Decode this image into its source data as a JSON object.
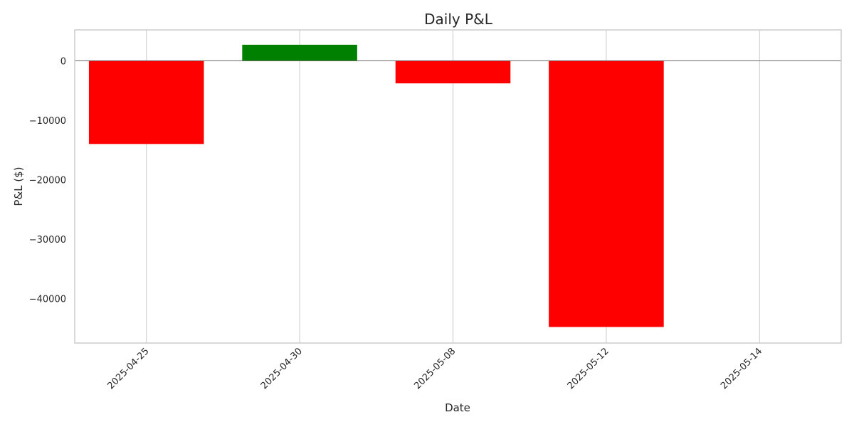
{
  "chart_data": {
    "type": "bar",
    "title": "Daily P&L",
    "xlabel": "Date",
    "ylabel": "P&L ($)",
    "categories": [
      "2025-04-25",
      "2025-04-30",
      "2025-05-08",
      "2025-05-12",
      "2025-05-14"
    ],
    "values": [
      -14000,
      2700,
      -3800,
      -44800,
      0
    ],
    "ylim": [
      -47500,
      5200
    ],
    "yticks": [
      0,
      -10000,
      -20000,
      -30000,
      -40000
    ],
    "ytick_labels": [
      "0",
      "−10000",
      "−20000",
      "−30000",
      "−40000"
    ],
    "grid": true,
    "zero_line": true,
    "colors": {
      "positive": "#008000",
      "negative": "#ff0000",
      "grid": "#d3d3d3",
      "frame": "#cccccc",
      "zero_line": "#555555"
    }
  }
}
